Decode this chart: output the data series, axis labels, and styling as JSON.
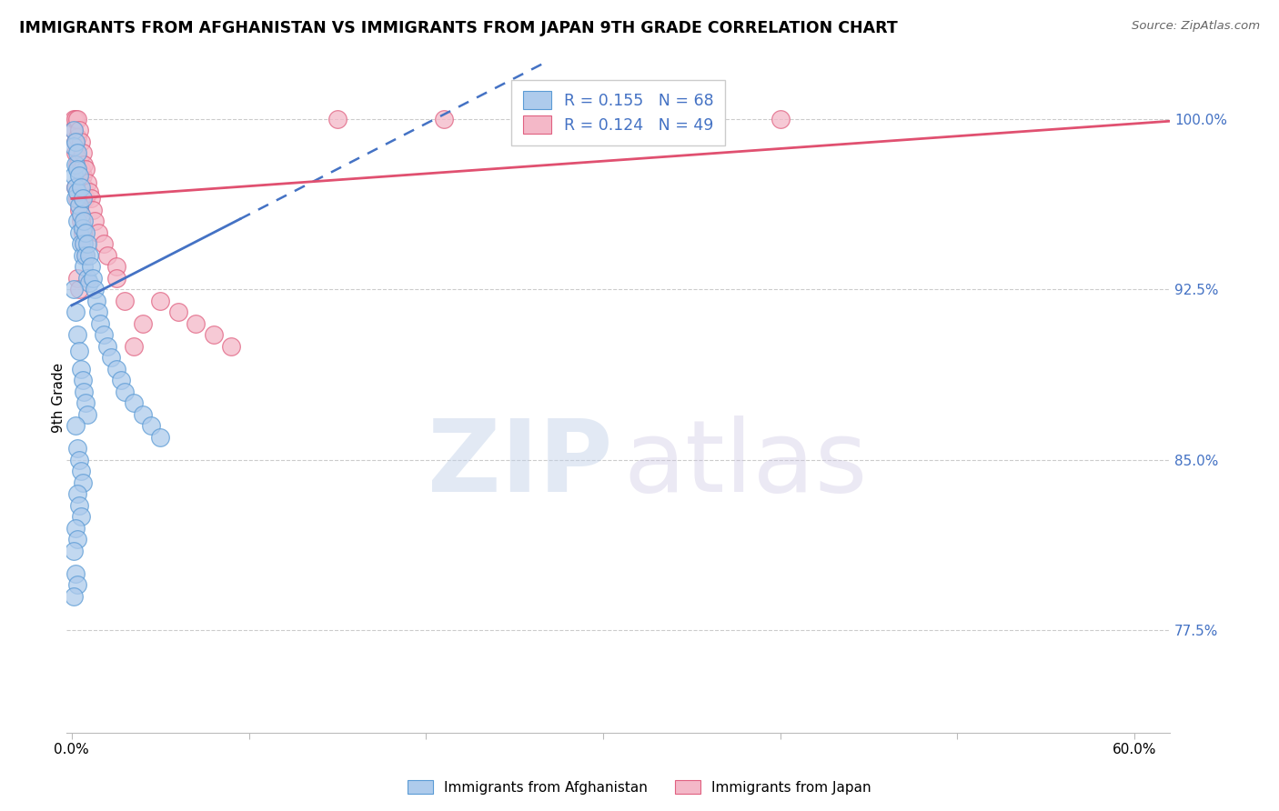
{
  "title": "IMMIGRANTS FROM AFGHANISTAN VS IMMIGRANTS FROM JAPAN 9TH GRADE CORRELATION CHART",
  "source": "Source: ZipAtlas.com",
  "ylabel": "9th Grade",
  "ylim": [
    73.0,
    102.5
  ],
  "xlim": [
    -0.003,
    0.62
  ],
  "ytick_vals": [
    77.5,
    85.0,
    92.5,
    100.0
  ],
  "ytick_labels": [
    "77.5%",
    "85.0%",
    "92.5%",
    "100.0%"
  ],
  "xtick_vals": [
    0.0,
    0.1,
    0.2,
    0.3,
    0.4,
    0.5,
    0.6
  ],
  "xtick_labels": [
    "0.0%",
    "",
    "",
    "",
    "",
    "",
    "60.0%"
  ],
  "afghan_R": 0.155,
  "afghan_N": 68,
  "japan_R": 0.124,
  "japan_N": 49,
  "color_afghan_face": "#AECBEC",
  "color_afghan_edge": "#5B9BD5",
  "color_japan_face": "#F4B8C8",
  "color_japan_edge": "#E06080",
  "color_afghan_line": "#4472C4",
  "color_japan_line": "#E05070",
  "color_tick_labels": "#4472C4",
  "color_grid": "#cccccc",
  "background_color": "#FFFFFF",
  "afghan_x": [
    0.001,
    0.001,
    0.001,
    0.002,
    0.002,
    0.002,
    0.002,
    0.003,
    0.003,
    0.003,
    0.003,
    0.004,
    0.004,
    0.004,
    0.005,
    0.005,
    0.005,
    0.006,
    0.006,
    0.006,
    0.007,
    0.007,
    0.007,
    0.008,
    0.008,
    0.009,
    0.009,
    0.01,
    0.01,
    0.011,
    0.012,
    0.013,
    0.014,
    0.015,
    0.016,
    0.018,
    0.02,
    0.022,
    0.025,
    0.028,
    0.03,
    0.035,
    0.04,
    0.045,
    0.05,
    0.001,
    0.002,
    0.003,
    0.004,
    0.005,
    0.006,
    0.007,
    0.008,
    0.009,
    0.002,
    0.003,
    0.004,
    0.005,
    0.006,
    0.003,
    0.004,
    0.005,
    0.002,
    0.003,
    0.001,
    0.002,
    0.003,
    0.001
  ],
  "afghan_y": [
    99.5,
    98.8,
    97.5,
    99.0,
    98.0,
    97.0,
    96.5,
    98.5,
    97.8,
    96.8,
    95.5,
    97.5,
    96.2,
    95.0,
    97.0,
    95.8,
    94.5,
    96.5,
    95.2,
    94.0,
    95.5,
    94.5,
    93.5,
    95.0,
    94.0,
    94.5,
    93.0,
    94.0,
    92.8,
    93.5,
    93.0,
    92.5,
    92.0,
    91.5,
    91.0,
    90.5,
    90.0,
    89.5,
    89.0,
    88.5,
    88.0,
    87.5,
    87.0,
    86.5,
    86.0,
    92.5,
    91.5,
    90.5,
    89.8,
    89.0,
    88.5,
    88.0,
    87.5,
    87.0,
    86.5,
    85.5,
    85.0,
    84.5,
    84.0,
    83.5,
    83.0,
    82.5,
    82.0,
    81.5,
    81.0,
    80.0,
    79.5,
    79.0
  ],
  "japan_x": [
    0.001,
    0.001,
    0.002,
    0.002,
    0.002,
    0.003,
    0.003,
    0.003,
    0.004,
    0.004,
    0.005,
    0.005,
    0.006,
    0.006,
    0.007,
    0.007,
    0.008,
    0.008,
    0.009,
    0.01,
    0.011,
    0.012,
    0.013,
    0.015,
    0.018,
    0.02,
    0.025,
    0.002,
    0.003,
    0.004,
    0.005,
    0.006,
    0.007,
    0.008,
    0.003,
    0.004,
    0.15,
    0.21,
    0.35,
    0.4,
    0.025,
    0.03,
    0.06,
    0.07,
    0.08,
    0.09,
    0.05,
    0.04,
    0.035
  ],
  "japan_y": [
    100.0,
    99.5,
    100.0,
    99.0,
    98.5,
    100.0,
    99.2,
    98.0,
    99.5,
    98.2,
    99.0,
    97.8,
    98.5,
    97.5,
    98.0,
    97.0,
    97.8,
    96.5,
    97.2,
    96.8,
    96.5,
    96.0,
    95.5,
    95.0,
    94.5,
    94.0,
    93.5,
    97.0,
    96.5,
    96.0,
    95.5,
    95.0,
    94.5,
    94.0,
    93.0,
    92.5,
    100.0,
    100.0,
    100.0,
    100.0,
    93.0,
    92.0,
    91.5,
    91.0,
    90.5,
    90.0,
    92.0,
    91.0,
    90.0
  ],
  "afghan_line_x0": 0.0,
  "afghan_line_x_solid_end": 0.095,
  "afghan_line_x1": 0.62,
  "afghan_line_y_intercept": 91.8,
  "afghan_line_slope": 40.0,
  "japan_line_y_intercept": 96.5,
  "japan_line_slope": 5.5
}
